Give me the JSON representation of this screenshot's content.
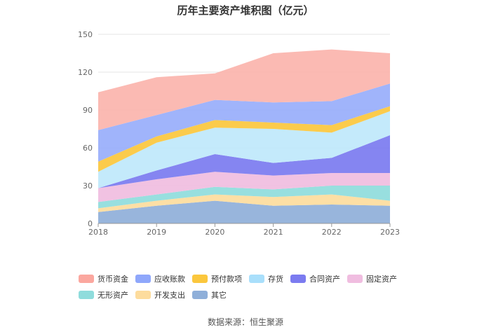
{
  "chart_data": {
    "type": "area",
    "stacked": true,
    "title": "历年主要资产堆积图（亿元）",
    "categories": [
      "2018",
      "2019",
      "2020",
      "2021",
      "2022",
      "2023"
    ],
    "ylim": [
      0,
      150
    ],
    "yticks": [
      "0",
      "30",
      "60",
      "90",
      "120",
      "150"
    ],
    "grid": true,
    "legend_position": "bottom",
    "series": [
      {
        "name": "其它",
        "color": "#8fafd9",
        "values": [
          9,
          14,
          18,
          14,
          15,
          14
        ]
      },
      {
        "name": "开发支出",
        "color": "#fddc9d",
        "values": [
          3,
          4,
          5,
          7,
          8,
          4
        ]
      },
      {
        "name": "无形资产",
        "color": "#8fdcdc",
        "values": [
          5,
          5,
          6,
          6,
          7,
          12
        ]
      },
      {
        "name": "固定资产",
        "color": "#f0bde0",
        "values": [
          11,
          12,
          12,
          11,
          10,
          10
        ]
      },
      {
        "name": "合同资产",
        "color": "#7b7bf0",
        "values": [
          0,
          7,
          14,
          10,
          12,
          30
        ]
      },
      {
        "name": "存货",
        "color": "#bfe8fb",
        "values": [
          13,
          22,
          21,
          27,
          20,
          19
        ]
      },
      {
        "name": "预付款项",
        "color": "#fbc73d",
        "values": [
          8,
          5,
          6,
          5,
          6,
          4
        ]
      },
      {
        "name": "应收账款",
        "color": "#98aefb",
        "values": [
          25,
          17,
          16,
          16,
          19,
          18
        ]
      },
      {
        "name": "货币资金",
        "color": "#fbb4ac",
        "values": [
          30,
          30,
          21,
          39,
          41,
          24
        ]
      }
    ]
  },
  "legend": [
    {
      "name": "货币资金",
      "color": "#fba79f"
    },
    {
      "name": "应收账款",
      "color": "#8fa7fb"
    },
    {
      "name": "预付款项",
      "color": "#fbc73d"
    },
    {
      "name": "存货",
      "color": "#a9dffb"
    },
    {
      "name": "合同资产",
      "color": "#7b7bf0"
    },
    {
      "name": "固定资产",
      "color": "#f0bde0"
    },
    {
      "name": "无形资产",
      "color": "#8fdcdc"
    },
    {
      "name": "开发支出",
      "color": "#fddc9d"
    },
    {
      "name": "其它",
      "color": "#8fafd9"
    }
  ],
  "source": "数据来源：恒生聚源"
}
